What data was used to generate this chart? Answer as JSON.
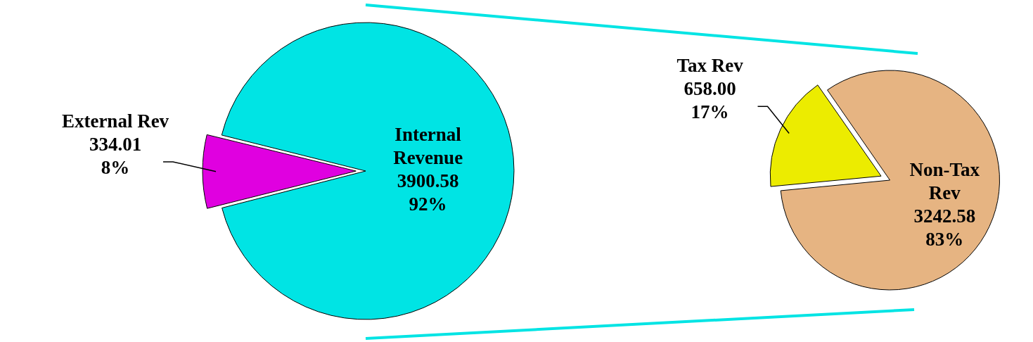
{
  "chart_data": [
    {
      "type": "pie",
      "categories": [
        "External Rev",
        "Internal Revenue"
      ],
      "values": [
        334.01,
        3900.58
      ],
      "colors": [
        "#e000e0",
        "#00e4e4"
      ],
      "value_labels": [
        "334.01\n8%",
        "3900.58\n92%"
      ]
    },
    {
      "type": "pie",
      "categories": [
        "Tax Rev",
        "Non-Tax Rev"
      ],
      "values": [
        658.0,
        3242.58
      ],
      "colors": [
        "#ecec00",
        "#e6b482"
      ],
      "value_labels": [
        "658.00\n17%",
        "3242.58\n83%"
      ]
    }
  ]
}
